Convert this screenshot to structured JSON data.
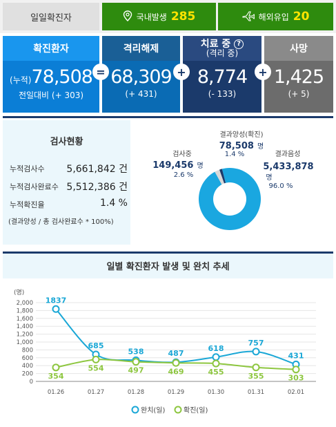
{
  "topbar": {
    "label": "일일확진자",
    "domestic_label": "국내발생",
    "domestic_value": "285",
    "overseas_label": "해외유입",
    "overseas_value": "20"
  },
  "stats": {
    "confirmed": {
      "title": "확진환자",
      "prefix": "(누적)",
      "value": "78,508",
      "sub": "전일대비 (+ 303)"
    },
    "released": {
      "title": "격리해제",
      "value": "68,309",
      "sub": "(+ 431)"
    },
    "treating": {
      "title": "치료 중",
      "title2": "(격리 중)",
      "help": "?",
      "value": "8,774",
      "sub": "(- 133)"
    },
    "deaths": {
      "title": "사망",
      "value": "1,425",
      "sub": "(+ 5)"
    },
    "op_eq": "=",
    "op_plus1": "+",
    "op_plus2": "+",
    "op_plus3": "+"
  },
  "tests": {
    "title": "검사현황",
    "rows": [
      {
        "label": "누적검사수",
        "value": "5,661,842 건"
      },
      {
        "label": "누적검사완료수",
        "value": "5,512,386 건"
      },
      {
        "label": "누적확진율",
        "value": "1.4 %"
      }
    ],
    "note": "(결과양성 / 총 검사완료수 * 100%)",
    "donut": {
      "positive": {
        "label": "결과양성(확진)",
        "value": "78,508",
        "unit": "명",
        "pct": "1.4 %",
        "ratio": 0.014
      },
      "testing": {
        "label": "검사중",
        "value": "149,456",
        "unit": "명",
        "pct": "2.6 %",
        "ratio": 0.026
      },
      "negative": {
        "label": "결과음성",
        "value": "5,433,878",
        "unit": "명",
        "pct": "96.0 %",
        "ratio": 0.96
      },
      "colors": {
        "negative": "#1aa7e0",
        "testing": "#d8d8d8",
        "positive": "#1b3a6b"
      }
    }
  },
  "chart_data": {
    "type": "line",
    "title": "일별 확진환자 발생 및 완치 추세",
    "ylabel": "(명)",
    "x": [
      "01.26",
      "01.27",
      "01.28",
      "01.29",
      "01.30",
      "01.31",
      "02.01"
    ],
    "ylim": [
      0,
      2000
    ],
    "yticks": [
      0,
      200,
      400,
      600,
      800,
      "1,000",
      "1,200",
      "1,400",
      "1,600",
      "1,800",
      "2,000"
    ],
    "grid": true,
    "legend_position": "bottom",
    "series": [
      {
        "name": "완치(일)",
        "color": "#1aa7d6",
        "values": [
          1837,
          685,
          538,
          487,
          618,
          757,
          431
        ]
      },
      {
        "name": "확진(일)",
        "color": "#8dc63f",
        "values": [
          354,
          554,
          497,
          469,
          455,
          355,
          303
        ]
      }
    ]
  }
}
